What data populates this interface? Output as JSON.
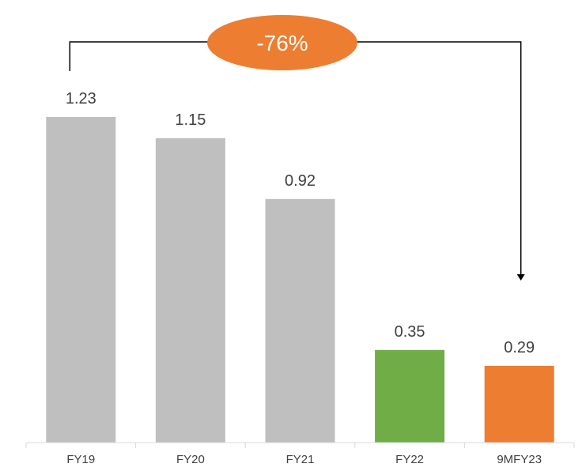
{
  "chart_data": {
    "type": "bar",
    "categories": [
      "FY19",
      "FY20",
      "FY21",
      "FY22",
      "9MFY23"
    ],
    "values": [
      1.23,
      1.15,
      0.92,
      0.35,
      0.29
    ],
    "value_labels": [
      "1.23",
      "1.15",
      "0.92",
      "0.35",
      "0.29"
    ],
    "bar_colors": [
      "#bfbfbf",
      "#bfbfbf",
      "#bfbfbf",
      "#70ad47",
      "#ed7d31"
    ],
    "ylim": [
      0,
      1.23
    ],
    "grid": false,
    "annotation": {
      "text": "-76%",
      "from": "FY19",
      "to": "9MFY23",
      "color": "#ed7d31"
    }
  }
}
